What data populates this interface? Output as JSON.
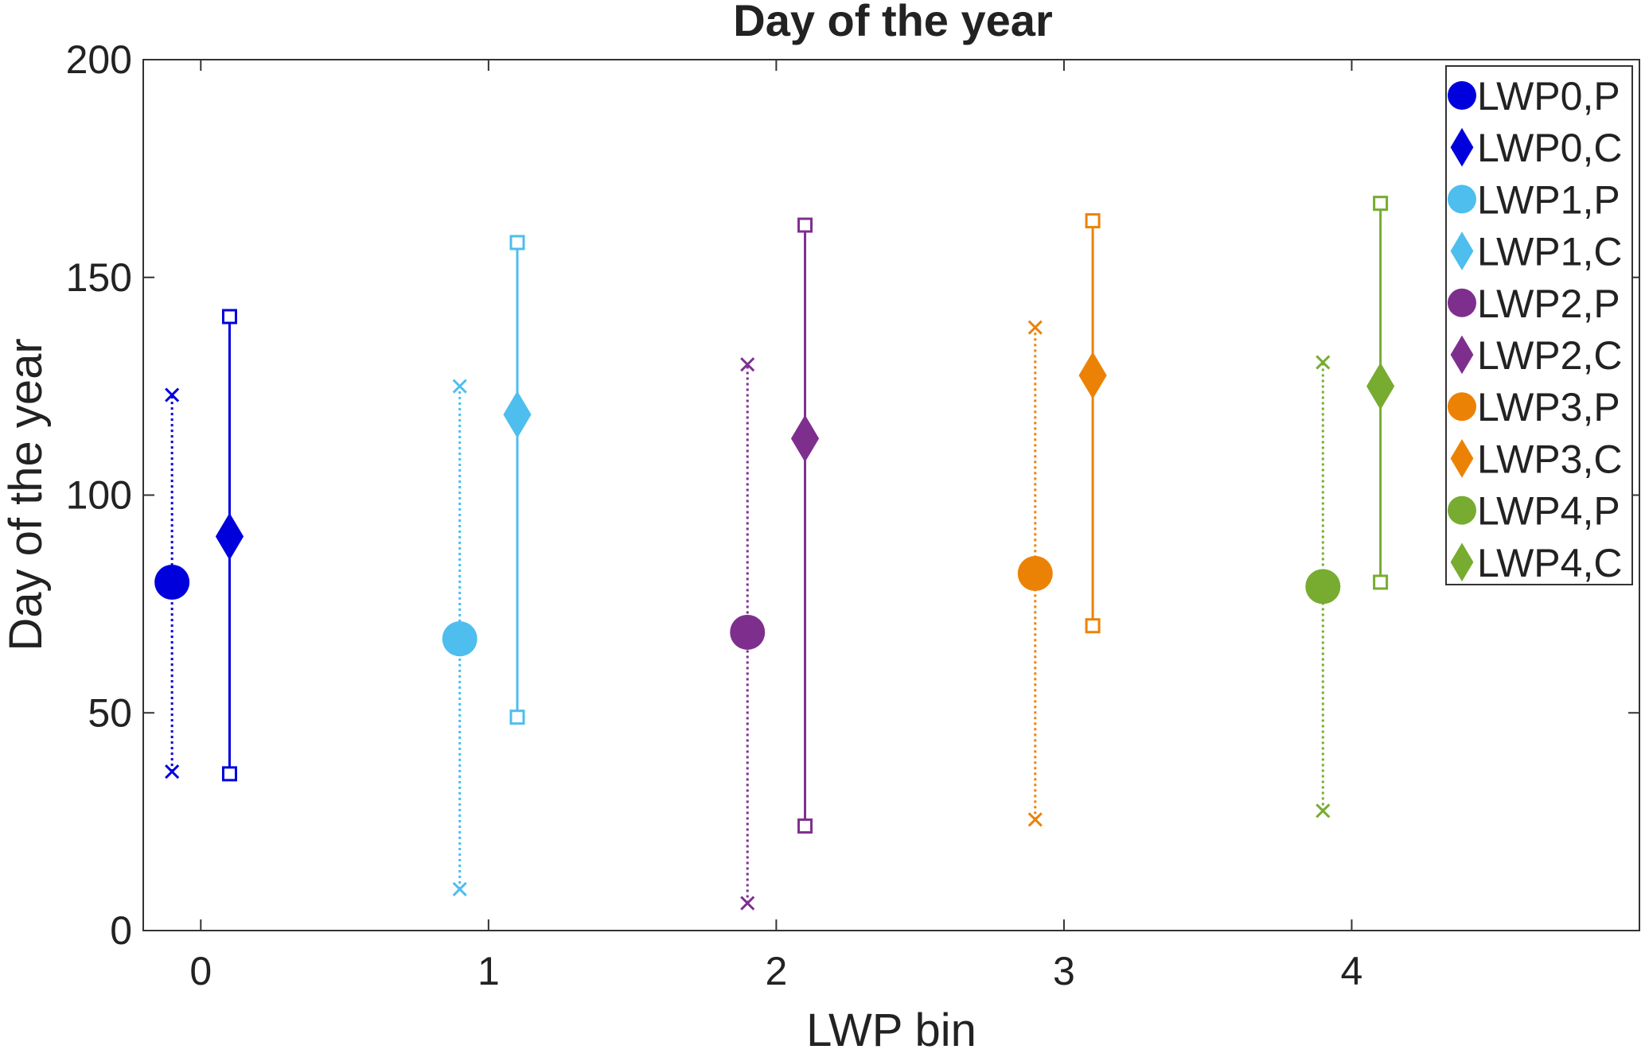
{
  "chart_data": {
    "type": "scatter",
    "title": "Day of the year",
    "xlabel": "LWP bin",
    "ylabel": "Day of the year",
    "xlim": [
      -0.2,
      5
    ],
    "ylim": [
      0,
      200
    ],
    "xticks": [
      "0",
      "1",
      "2",
      "3",
      "4"
    ],
    "yticks": [
      "0",
      "50",
      "100",
      "150",
      "200"
    ],
    "grid": false,
    "legend_position": "top-right",
    "series": [
      {
        "name": "LWP0,P",
        "color": "#0000DD",
        "marker": "circle",
        "x": -0.1,
        "y": 80,
        "low": 36.5,
        "high": 123,
        "line": "dotted",
        "cap": "x"
      },
      {
        "name": "LWP0,C",
        "color": "#0000DD",
        "marker": "diamond",
        "x": 0.1,
        "y": 90.5,
        "low": 36,
        "high": 141,
        "line": "solid",
        "cap": "square"
      },
      {
        "name": "LWP1,P",
        "color": "#4DBEEE",
        "marker": "circle",
        "x": 0.9,
        "y": 67,
        "low": 9.5,
        "high": 125,
        "line": "dotted",
        "cap": "x"
      },
      {
        "name": "LWP1,C",
        "color": "#4DBEEE",
        "marker": "diamond",
        "x": 1.1,
        "y": 118.5,
        "low": 49,
        "high": 158,
        "line": "solid",
        "cap": "square"
      },
      {
        "name": "LWP2,P",
        "color": "#7E2F8E",
        "marker": "circle",
        "x": 1.9,
        "y": 68.5,
        "low": 6.3,
        "high": 130,
        "line": "dotted",
        "cap": "x"
      },
      {
        "name": "LWP2,C",
        "color": "#7E2F8E",
        "marker": "diamond",
        "x": 2.1,
        "y": 113,
        "low": 24,
        "high": 162,
        "line": "solid",
        "cap": "square"
      },
      {
        "name": "LWP3,P",
        "color": "#EC8205",
        "marker": "circle",
        "x": 2.9,
        "y": 82,
        "low": 25.5,
        "high": 138.5,
        "line": "dotted",
        "cap": "x"
      },
      {
        "name": "LWP3,C",
        "color": "#EC8205",
        "marker": "diamond",
        "x": 3.1,
        "y": 127.5,
        "low": 70,
        "high": 163,
        "line": "solid",
        "cap": "square"
      },
      {
        "name": "LWP4,P",
        "color": "#77AC30",
        "marker": "circle",
        "x": 3.9,
        "y": 79,
        "low": 27.5,
        "high": 130.5,
        "line": "dotted",
        "cap": "x"
      },
      {
        "name": "LWP4,C",
        "color": "#77AC30",
        "marker": "diamond",
        "x": 4.1,
        "y": 125,
        "low": 80,
        "high": 167,
        "line": "solid",
        "cap": "square"
      }
    ]
  }
}
